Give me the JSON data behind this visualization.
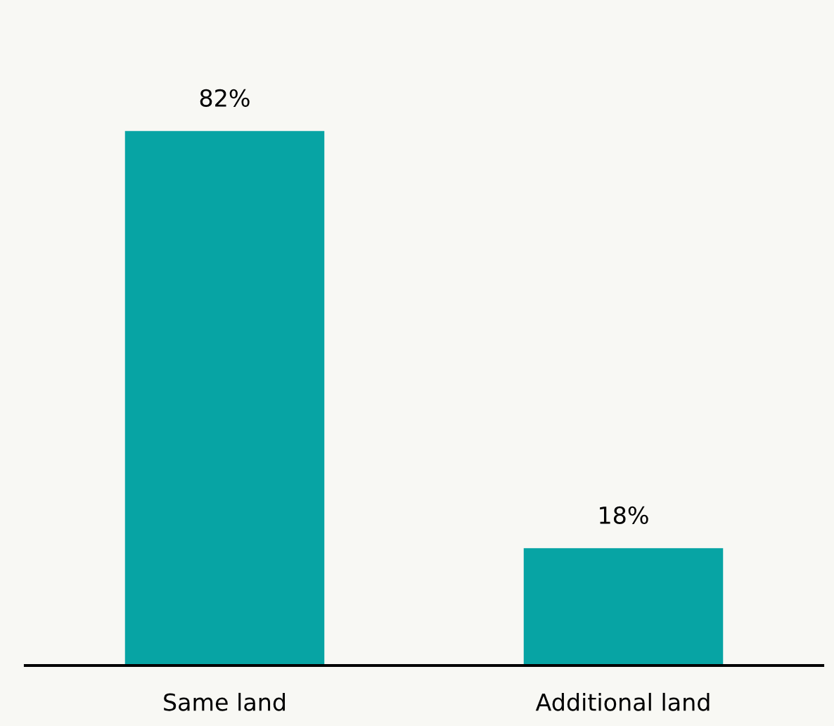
{
  "chart_data": {
    "type": "bar",
    "categories": [
      "Same land",
      "Additional land"
    ],
    "values": [
      82,
      18
    ],
    "value_labels": [
      "82%",
      "18%"
    ],
    "color": "#07a4a4",
    "grid": false,
    "legend": false,
    "tick_labels": "x"
  }
}
